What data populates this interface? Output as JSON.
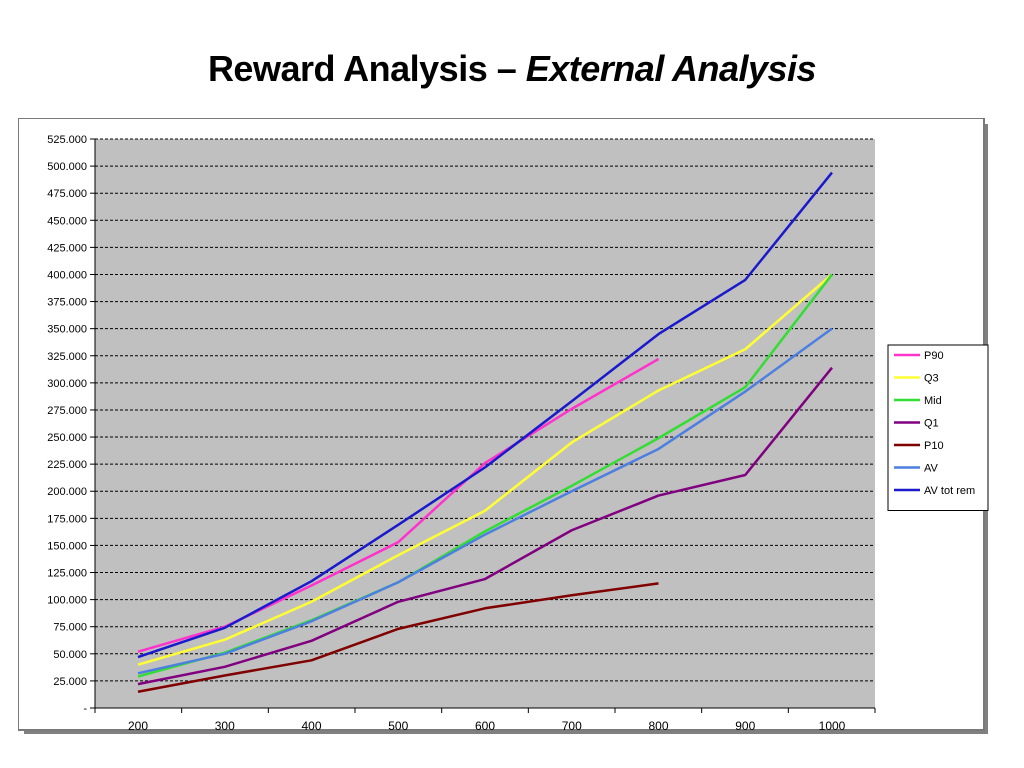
{
  "title": {
    "main": "Reward Analysis – ",
    "emphasis": "External  Analysis"
  },
  "chart_data": {
    "type": "line",
    "x": [
      200,
      300,
      400,
      500,
      600,
      700,
      800,
      900,
      1000
    ],
    "x_tick_labels": [
      "200",
      "300",
      "400",
      "500",
      "600",
      "700",
      "800",
      "900",
      "1000"
    ],
    "ylim": [
      0,
      525000
    ],
    "y_ticks": [
      0,
      25000,
      50000,
      75000,
      100000,
      125000,
      150000,
      175000,
      200000,
      225000,
      250000,
      275000,
      300000,
      325000,
      350000,
      375000,
      400000,
      425000,
      450000,
      475000,
      500000,
      525000
    ],
    "y_tick_labels": [
      "-",
      "25.000",
      "50.000",
      "75.000",
      "100.000",
      "125.000",
      "150.000",
      "175.000",
      "200.000",
      "225.000",
      "250.000",
      "275.000",
      "300.000",
      "325.000",
      "350.000",
      "375.000",
      "400.000",
      "425.000",
      "450.000",
      "475.000",
      "500.000",
      "525.000"
    ],
    "grid": "horizontal-dashed",
    "legend_position": "right",
    "plot_background": "#c0c0c0",
    "series": [
      {
        "name": "P90",
        "color": "#ff33cc",
        "values": [
          52000,
          75000,
          113000,
          153000,
          226000,
          276000,
          322000,
          null,
          null
        ]
      },
      {
        "name": "Q3",
        "color": "#ffff33",
        "values": [
          40000,
          63000,
          98000,
          141000,
          182000,
          245000,
          293000,
          331000,
          400000
        ]
      },
      {
        "name": "Mid",
        "color": "#33dd33",
        "values": [
          29000,
          51000,
          81000,
          116000,
          163000,
          205000,
          249000,
          296000,
          400000
        ]
      },
      {
        "name": "Q1",
        "color": "#800080",
        "values": [
          22000,
          38000,
          62000,
          98000,
          119000,
          164000,
          196000,
          215000,
          314000
        ]
      },
      {
        "name": "P10",
        "color": "#800000",
        "values": [
          15000,
          30000,
          44000,
          73000,
          92000,
          104000,
          115000,
          null,
          null
        ]
      },
      {
        "name": "AV",
        "color": "#4d7fe0",
        "values": [
          32000,
          50000,
          80000,
          116000,
          160000,
          200000,
          239000,
          292000,
          350000
        ]
      },
      {
        "name": "AV tot rem",
        "color": "#1a1acc",
        "values": [
          47000,
          74000,
          117000,
          169000,
          222000,
          283000,
          345000,
          395000,
          494000
        ]
      }
    ]
  }
}
